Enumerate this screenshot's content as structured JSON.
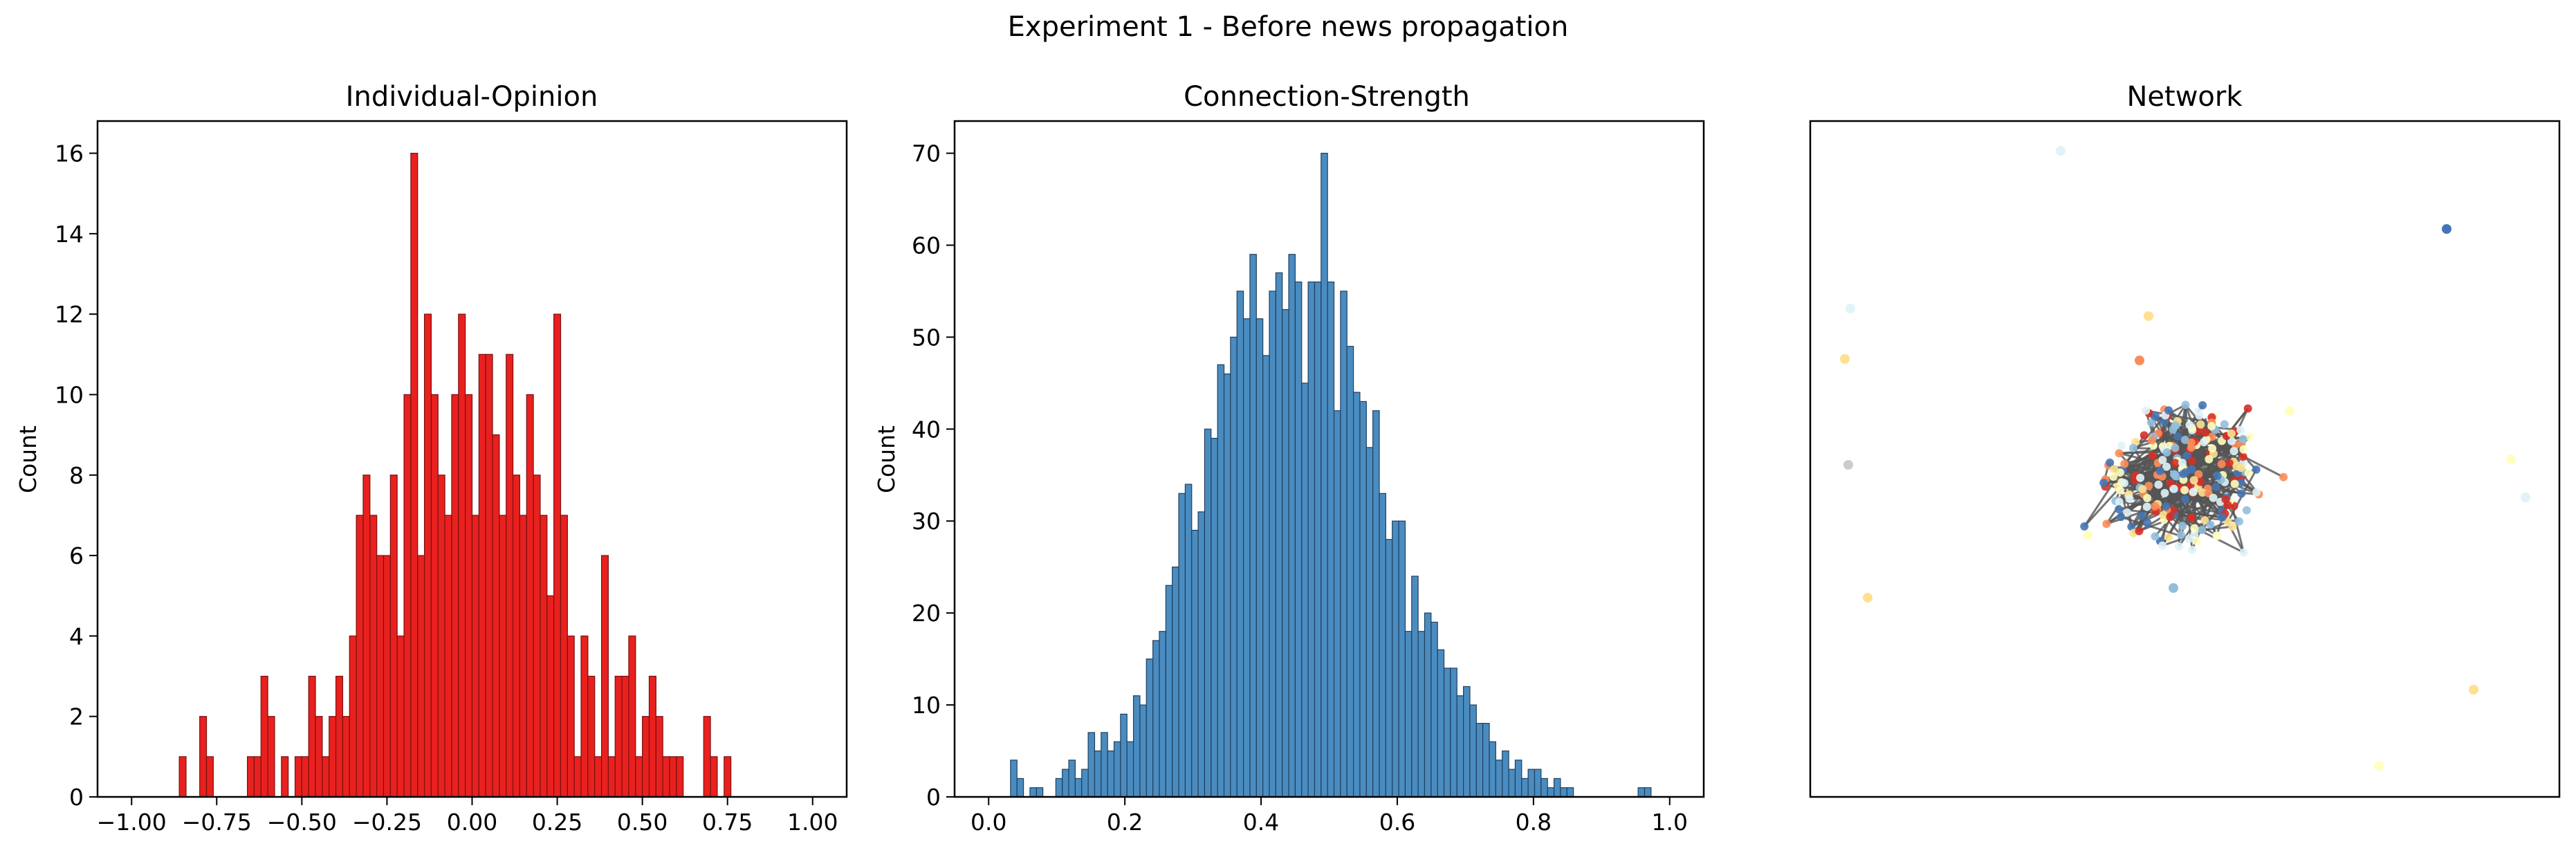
{
  "figure": {
    "suptitle": "Experiment 1 - Before news propagation"
  },
  "chart_data": [
    {
      "type": "bar",
      "subtype": "histogram",
      "title": "Individual-Opinion",
      "xlabel": "",
      "ylabel": "Count",
      "xlim": [
        -1.1,
        1.1
      ],
      "ylim": [
        0,
        16.8
      ],
      "bin_width": 0.02,
      "color": "#e8211f",
      "edge_color": "#7a1010",
      "xticks": [
        -1.0,
        -0.75,
        -0.5,
        -0.25,
        0.0,
        0.25,
        0.5,
        0.75,
        1.0
      ],
      "xtick_labels": [
        "−1.00",
        "−0.75",
        "−0.50",
        "−0.25",
        "0.00",
        "0.25",
        "0.50",
        "0.75",
        "1.00"
      ],
      "yticks": [
        0,
        2,
        4,
        6,
        8,
        10,
        12,
        14,
        16
      ],
      "bins": [
        {
          "x": -0.85,
          "count": 1
        },
        {
          "x": -0.79,
          "count": 2
        },
        {
          "x": -0.77,
          "count": 1
        },
        {
          "x": -0.65,
          "count": 1
        },
        {
          "x": -0.63,
          "count": 1
        },
        {
          "x": -0.61,
          "count": 3
        },
        {
          "x": -0.59,
          "count": 2
        },
        {
          "x": -0.55,
          "count": 1
        },
        {
          "x": -0.51,
          "count": 1
        },
        {
          "x": -0.49,
          "count": 1
        },
        {
          "x": -0.47,
          "count": 3
        },
        {
          "x": -0.45,
          "count": 2
        },
        {
          "x": -0.43,
          "count": 1
        },
        {
          "x": -0.41,
          "count": 2
        },
        {
          "x": -0.39,
          "count": 3
        },
        {
          "x": -0.37,
          "count": 2
        },
        {
          "x": -0.35,
          "count": 4
        },
        {
          "x": -0.33,
          "count": 7
        },
        {
          "x": -0.31,
          "count": 8
        },
        {
          "x": -0.29,
          "count": 7
        },
        {
          "x": -0.27,
          "count": 6
        },
        {
          "x": -0.25,
          "count": 6
        },
        {
          "x": -0.23,
          "count": 8
        },
        {
          "x": -0.21,
          "count": 4
        },
        {
          "x": -0.19,
          "count": 10
        },
        {
          "x": -0.17,
          "count": 16
        },
        {
          "x": -0.15,
          "count": 6
        },
        {
          "x": -0.13,
          "count": 12
        },
        {
          "x": -0.11,
          "count": 10
        },
        {
          "x": -0.09,
          "count": 8
        },
        {
          "x": -0.07,
          "count": 7
        },
        {
          "x": -0.05,
          "count": 10
        },
        {
          "x": -0.03,
          "count": 12
        },
        {
          "x": -0.01,
          "count": 10
        },
        {
          "x": 0.01,
          "count": 7
        },
        {
          "x": 0.03,
          "count": 11
        },
        {
          "x": 0.05,
          "count": 11
        },
        {
          "x": 0.07,
          "count": 9
        },
        {
          "x": 0.09,
          "count": 7
        },
        {
          "x": 0.11,
          "count": 11
        },
        {
          "x": 0.13,
          "count": 8
        },
        {
          "x": 0.15,
          "count": 7
        },
        {
          "x": 0.17,
          "count": 10
        },
        {
          "x": 0.19,
          "count": 8
        },
        {
          "x": 0.21,
          "count": 7
        },
        {
          "x": 0.23,
          "count": 5
        },
        {
          "x": 0.25,
          "count": 12
        },
        {
          "x": 0.27,
          "count": 7
        },
        {
          "x": 0.29,
          "count": 4
        },
        {
          "x": 0.31,
          "count": 1
        },
        {
          "x": 0.33,
          "count": 4
        },
        {
          "x": 0.35,
          "count": 3
        },
        {
          "x": 0.37,
          "count": 1
        },
        {
          "x": 0.39,
          "count": 6
        },
        {
          "x": 0.41,
          "count": 1
        },
        {
          "x": 0.43,
          "count": 3
        },
        {
          "x": 0.45,
          "count": 3
        },
        {
          "x": 0.47,
          "count": 4
        },
        {
          "x": 0.49,
          "count": 1
        },
        {
          "x": 0.51,
          "count": 2
        },
        {
          "x": 0.53,
          "count": 3
        },
        {
          "x": 0.55,
          "count": 2
        },
        {
          "x": 0.57,
          "count": 1
        },
        {
          "x": 0.59,
          "count": 1
        },
        {
          "x": 0.61,
          "count": 1
        },
        {
          "x": 0.69,
          "count": 2
        },
        {
          "x": 0.71,
          "count": 1
        },
        {
          "x": 0.75,
          "count": 1
        }
      ]
    },
    {
      "type": "bar",
      "subtype": "histogram",
      "title": "Connection-Strength",
      "xlabel": "",
      "ylabel": "Count",
      "xlim": [
        -0.05,
        1.05
      ],
      "ylim": [
        0,
        73.5
      ],
      "bin_width": 0.0095,
      "color": "#4a8cc0",
      "edge_color": "#1f3f5e",
      "xticks": [
        0.0,
        0.2,
        0.4,
        0.6,
        0.8,
        1.0
      ],
      "xtick_labels": [
        "0.0",
        "0.2",
        "0.4",
        "0.6",
        "0.8",
        "1.0"
      ],
      "yticks": [
        0,
        10,
        20,
        30,
        40,
        50,
        60,
        70
      ],
      "x_start": 0.0369,
      "counts": [
        4,
        2,
        0,
        1,
        1,
        0,
        0,
        2,
        3,
        4,
        2,
        3,
        7,
        5,
        7,
        5,
        6,
        9,
        6,
        11,
        10,
        15,
        17,
        18,
        23,
        25,
        33,
        34,
        29,
        31,
        40,
        39,
        47,
        46,
        50,
        55,
        52,
        59,
        52,
        48,
        55,
        57,
        53,
        59,
        56,
        45,
        56,
        56,
        70,
        56,
        42,
        55,
        49,
        44,
        43,
        38,
        42,
        33,
        28,
        30,
        30,
        18,
        24,
        18,
        20,
        19,
        16,
        14,
        14,
        11,
        12,
        10,
        8,
        8,
        6,
        4,
        5,
        3,
        4,
        2,
        3,
        3,
        2,
        1,
        2,
        1,
        1,
        0,
        0,
        0,
        0,
        0,
        0,
        0,
        0,
        0,
        0,
        1,
        1
      ]
    },
    {
      "type": "network",
      "title": "Network",
      "node_colors": [
        "#4575b4",
        "#91bfdb",
        "#e0f3f8",
        "#fee090",
        "#fc8d59",
        "#d73027",
        "#ffffbf",
        "#cccccc"
      ],
      "edge_color": "#555555"
    }
  ]
}
